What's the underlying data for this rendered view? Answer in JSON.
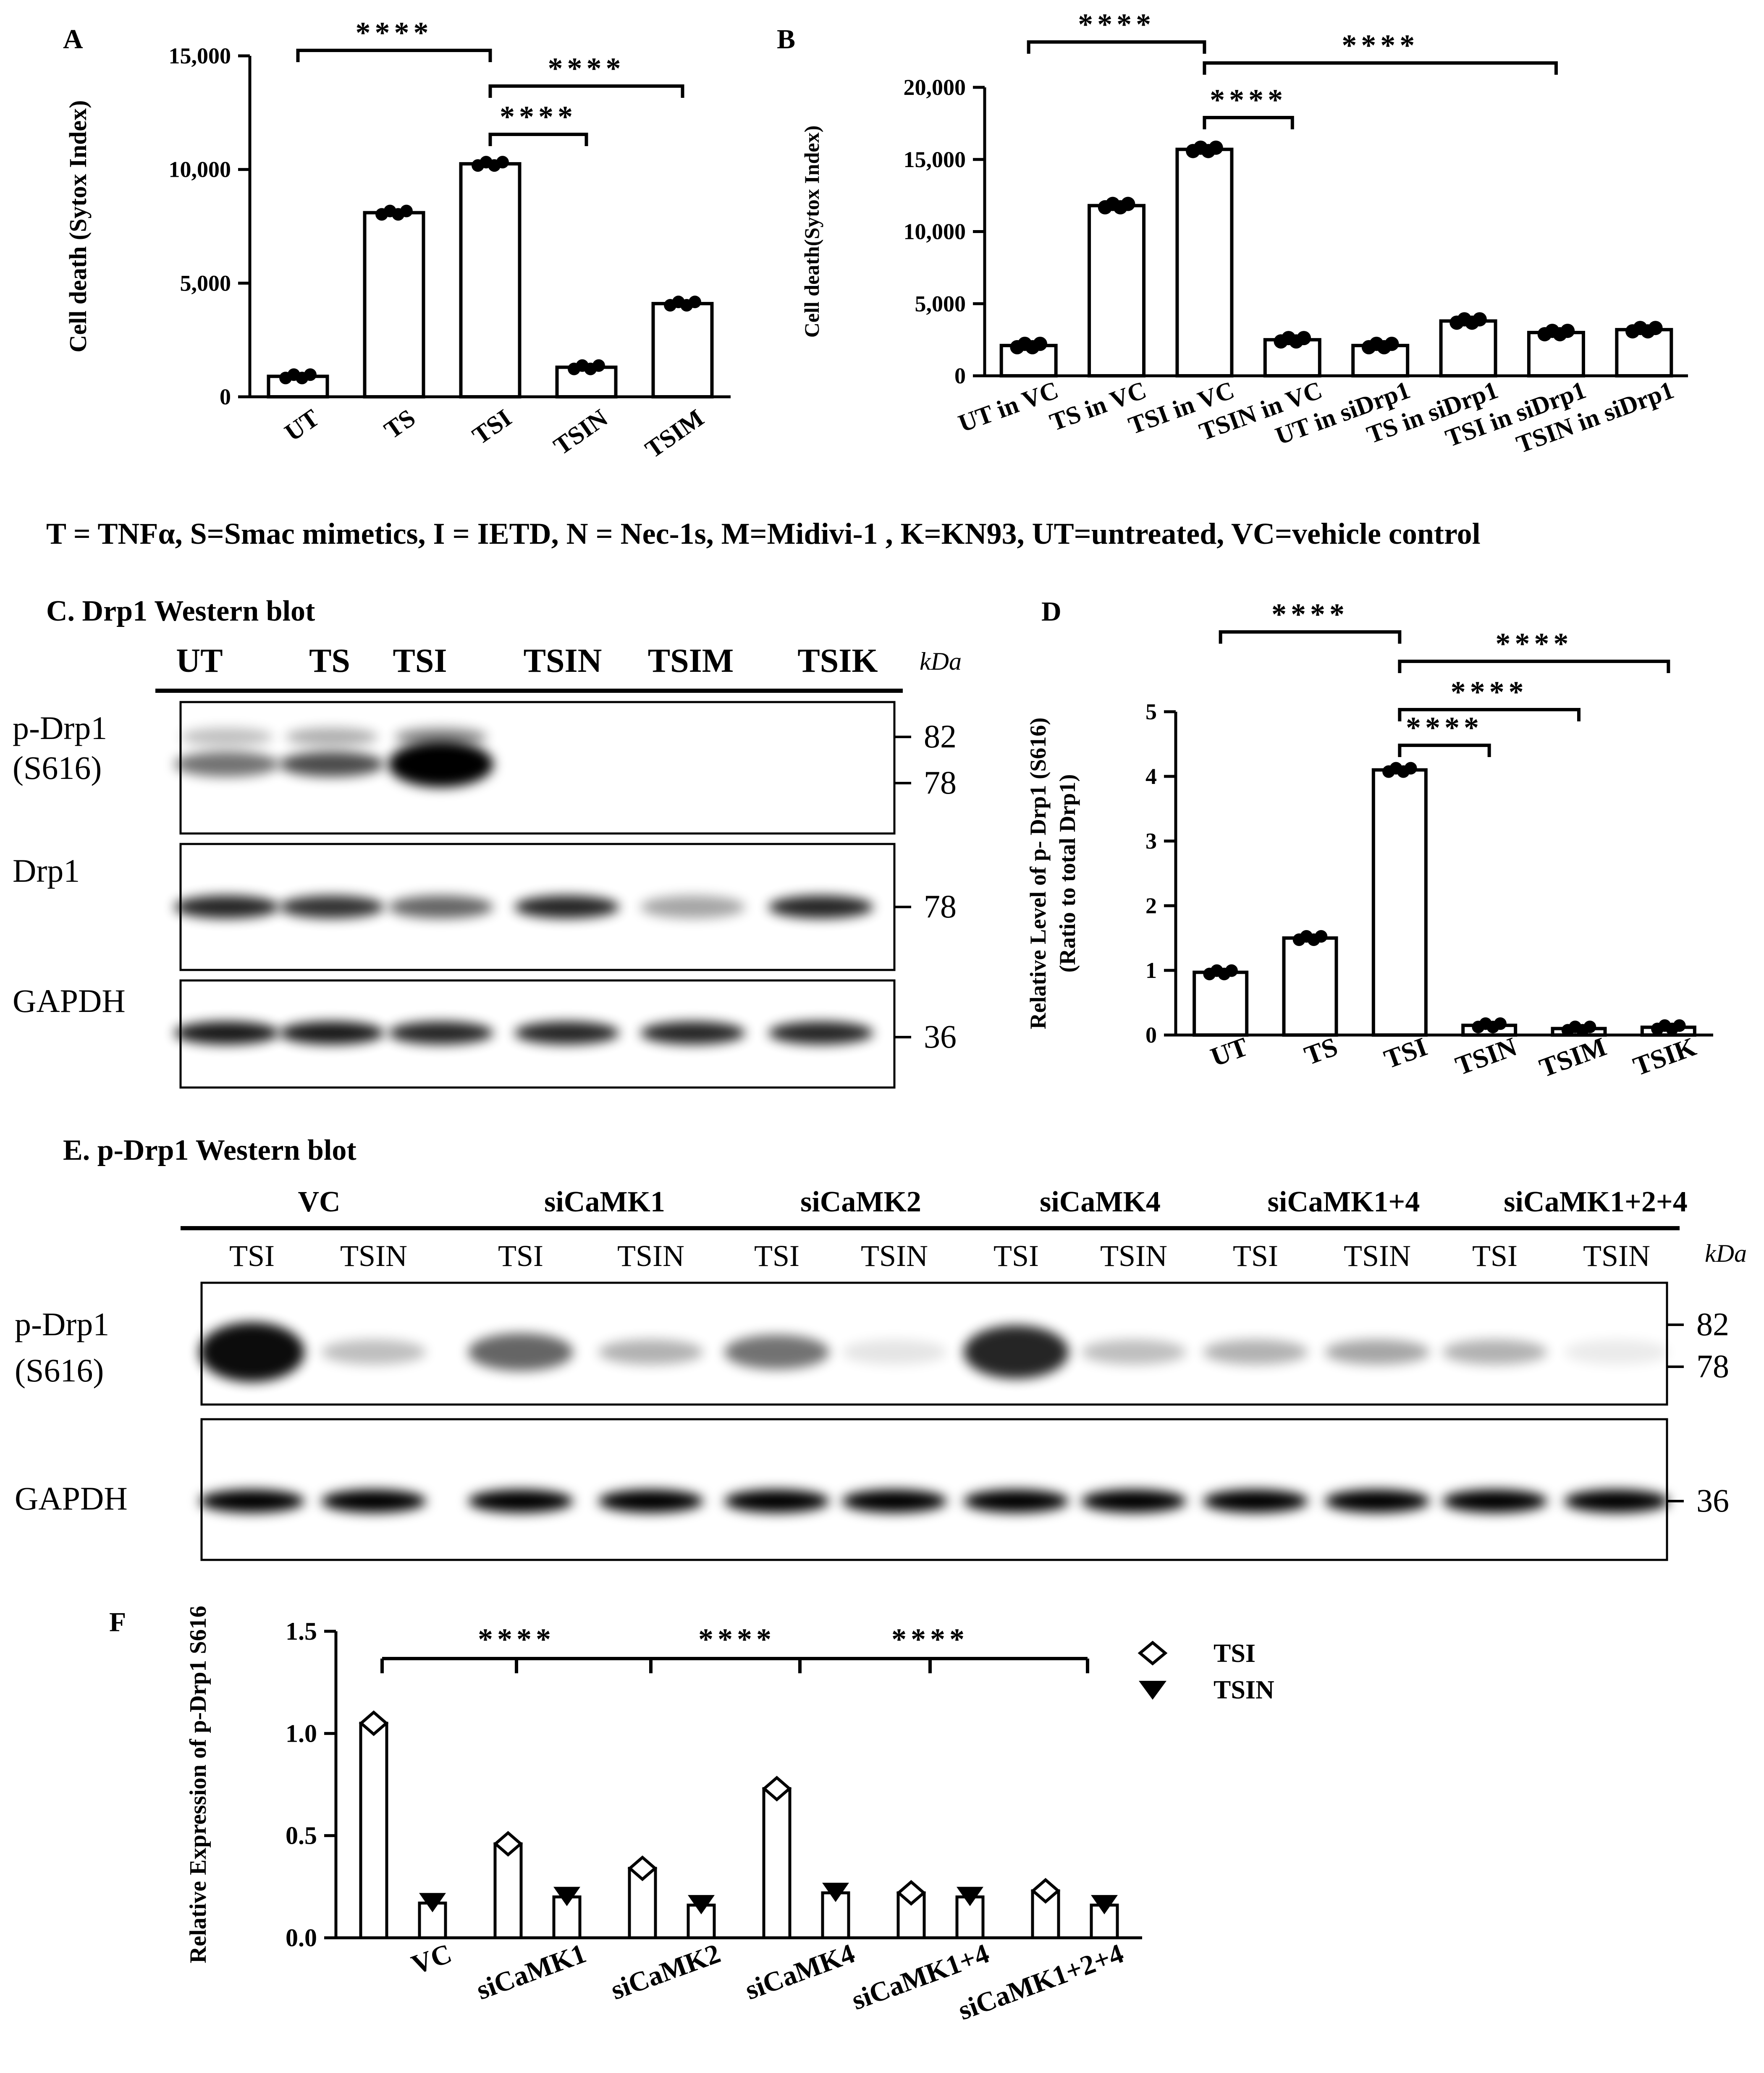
{
  "abbreviations": "T = TNFα, S=Smac mimetics, I = IETD, N = Nec-1s, M=Midivi-1 , K=KN93, UT=untreated, VC=vehicle control",
  "panels": {
    "A": "A",
    "B": "B",
    "C": "C. Drp1 Western blot",
    "D": "D",
    "E": "E. p-Drp1 Western blot",
    "F": "F"
  },
  "significance": "****",
  "chart_data": [
    {
      "id": "A",
      "type": "bar",
      "ylabel": "Cell death (Sytox Index)",
      "ylim": [
        0,
        15000
      ],
      "yticks": [
        "0",
        "5,000",
        "10,000",
        "15,000"
      ],
      "ytick_values": [
        0,
        5000,
        10000,
        15000
      ],
      "categories": [
        "UT",
        "TS",
        "TSI",
        "TSIN",
        "TSIM"
      ],
      "values": [
        900,
        8100,
        10250,
        1300,
        4100
      ],
      "significance": [
        {
          "from": "UT",
          "to": "TSI",
          "label": "****"
        },
        {
          "from": "TSI",
          "to": "TSIN",
          "label": "****"
        },
        {
          "from": "TSI",
          "to": "TSIM",
          "label": "****"
        }
      ]
    },
    {
      "id": "B",
      "type": "bar",
      "ylabel": "Cell death(Sytox Index)",
      "ylim": [
        0,
        20000
      ],
      "yticks": [
        "0",
        "5,000",
        "10,000",
        "15,000",
        "20,000"
      ],
      "ytick_values": [
        0,
        5000,
        10000,
        15000,
        20000
      ],
      "categories": [
        "UT in VC",
        "TS in VC",
        "TSI in VC",
        "TSIN in VC",
        "UT in siDrp1",
        "TS in siDrp1",
        "TSI in siDrp1",
        "TSIN in siDrp1"
      ],
      "values": [
        2100,
        11800,
        15700,
        2500,
        2100,
        3800,
        3000,
        3200
      ],
      "significance": [
        {
          "from": "UT in VC",
          "to": "TSI in VC",
          "label": "****"
        },
        {
          "from": "TSI in VC",
          "to": "TSIN in VC",
          "label": "****"
        },
        {
          "from": "TSI in VC",
          "to": "TSI in siDrp1",
          "label": "****"
        }
      ]
    },
    {
      "id": "D",
      "type": "bar",
      "ylabel": "Relative Level of p- Drp1 (S616)",
      "ylabel2": "(Ratio to total Drp1)",
      "ylim": [
        0,
        5
      ],
      "yticks": [
        "0",
        "1",
        "2",
        "3",
        "4",
        "5"
      ],
      "ytick_values": [
        0,
        1,
        2,
        3,
        4,
        5
      ],
      "categories": [
        "UT",
        "TS",
        "TSI",
        "TSIN",
        "TSIM",
        "TSIK"
      ],
      "values": [
        0.97,
        1.5,
        4.1,
        0.15,
        0.1,
        0.12
      ],
      "significance": [
        {
          "from": "UT",
          "to": "TSI",
          "label": "****"
        },
        {
          "from": "TSI",
          "to": "TSIN",
          "label": "****"
        },
        {
          "from": "TSI",
          "to": "TSIM",
          "label": "****"
        },
        {
          "from": "TSI",
          "to": "TSIK",
          "label": "****"
        }
      ]
    },
    {
      "id": "F",
      "type": "bar",
      "ylabel": "Relative Expression of p-Drp1 S616",
      "ylim": [
        0,
        1.5
      ],
      "yticks": [
        "0.0",
        "0.5",
        "1.0",
        "1.5"
      ],
      "ytick_values": [
        0,
        0.5,
        1.0,
        1.5
      ],
      "categories": [
        "VC",
        "siCaMK1",
        "siCaMK2",
        "siCaMK4",
        "siCaMK1+4",
        "siCaMK1+2+4"
      ],
      "series": [
        {
          "name": "TSI",
          "values": [
            1.05,
            0.46,
            0.34,
            0.73,
            0.22,
            0.23
          ]
        },
        {
          "name": "TSIN",
          "values": [
            0.17,
            0.2,
            0.16,
            0.22,
            0.2,
            0.16
          ]
        }
      ],
      "legend": "top-right",
      "significance": "****"
    }
  ],
  "blots": {
    "C": {
      "lanes": [
        "UT",
        "TS",
        "TSI",
        "TSIN",
        "TSIM",
        "TSIK"
      ],
      "unit": "kDa",
      "rows": [
        {
          "label": "p-Drp1",
          "label2": "(S616)",
          "markers": [
            "82",
            "78"
          ],
          "intensity": [
            0.55,
            0.7,
            1.0,
            0.05,
            0.03,
            0.04
          ]
        },
        {
          "label": "Drp1",
          "markers": [
            "78"
          ],
          "intensity": [
            0.85,
            0.8,
            0.6,
            0.85,
            0.35,
            0.85
          ]
        },
        {
          "label": "GAPDH",
          "markers": [
            "36"
          ],
          "intensity": [
            0.9,
            0.9,
            0.85,
            0.85,
            0.85,
            0.85
          ]
        }
      ]
    },
    "E": {
      "groups": [
        "VC",
        "siCaMK1",
        "siCaMK2",
        "siCaMK4",
        "siCaMK1+4",
        "siCaMK1+2+4"
      ],
      "lanes": [
        "TSI",
        "TSIN",
        "TSI",
        "TSIN",
        "TSI",
        "TSIN",
        "TSI",
        "TSIN",
        "TSI",
        "TSIN",
        "TSI",
        "TSIN"
      ],
      "unit": "kDa",
      "rows": [
        {
          "label": "p-Drp1",
          "label2": "(S616)",
          "markers": [
            "82",
            "78"
          ],
          "intensity": [
            0.95,
            0.25,
            0.6,
            0.3,
            0.55,
            0.1,
            0.85,
            0.25,
            0.3,
            0.35,
            0.3,
            0.08
          ]
        },
        {
          "label": "GAPDH",
          "markers": [
            "36"
          ],
          "intensity": [
            1,
            1,
            1,
            1,
            1,
            1,
            1,
            1,
            1,
            1,
            1,
            1
          ]
        }
      ]
    }
  }
}
